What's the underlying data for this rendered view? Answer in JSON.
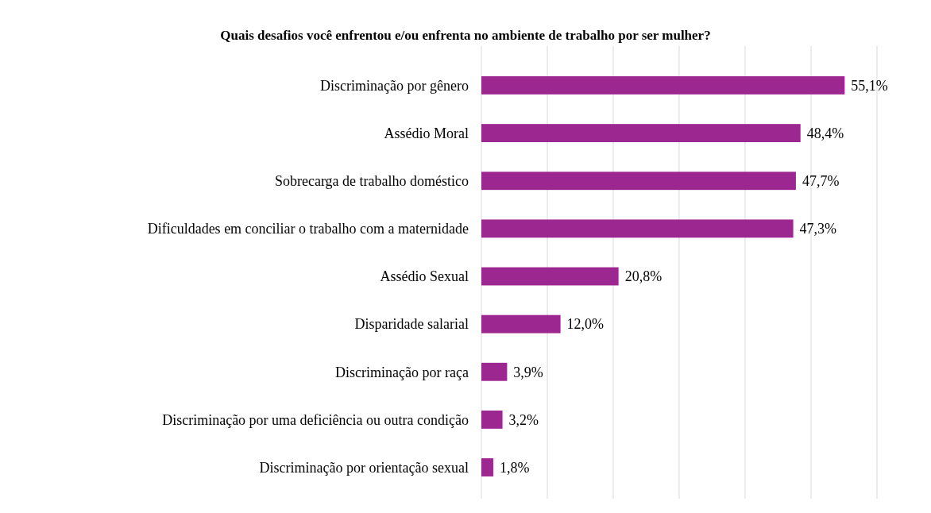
{
  "chart_data": {
    "type": "bar",
    "orientation": "horizontal",
    "title": "Quais desafios você enfrentou e/ou enfrenta no ambiente de trabalho por ser mulher?",
    "categories": [
      "Discriminação por gênero",
      "Assédio Moral",
      "Sobrecarga de trabalho doméstico",
      "Dificuldades em conciliar o trabalho com a maternidade",
      "Assédio Sexual",
      "Disparidade salarial",
      "Discriminação por raça",
      "Discriminação por uma deficiência ou outra condição",
      "Discriminação por orientação sexual"
    ],
    "values": [
      55.1,
      48.4,
      47.7,
      47.3,
      20.8,
      12.0,
      3.9,
      3.2,
      1.8
    ],
    "value_labels": [
      "55,1%",
      "48,4%",
      "47,7%",
      "47,3%",
      "20,8%",
      "12,0%",
      "3,9%",
      "3,2%",
      "1,8%"
    ],
    "color": "#9c2790",
    "xlim": [
      0,
      60
    ],
    "xticks": [
      {
        "value": 0,
        "label": null
      },
      {
        "value": 10,
        "label": null
      },
      {
        "value": 20,
        "label": null
      },
      {
        "value": 30,
        "label": null
      },
      {
        "value": 40,
        "label": null
      },
      {
        "value": 50,
        "label": null
      },
      {
        "value": 60,
        "label": null
      }
    ],
    "tick_labels": "y",
    "grid": "x"
  }
}
